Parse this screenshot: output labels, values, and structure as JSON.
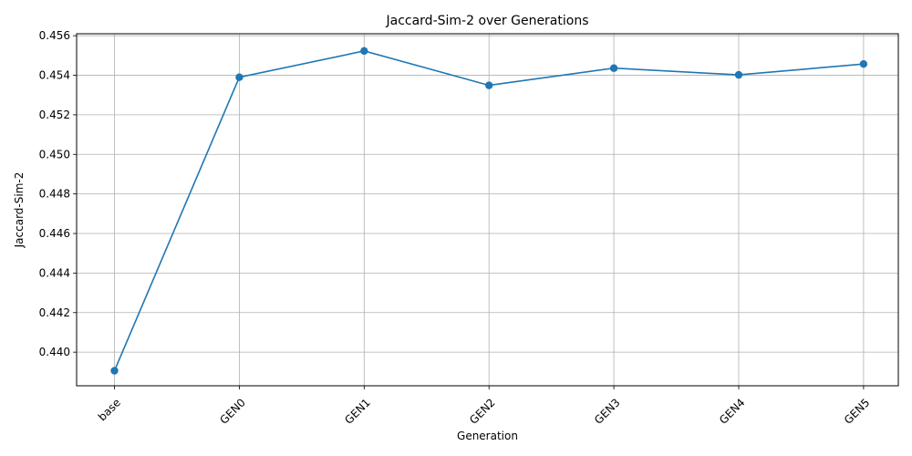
{
  "chart_data": {
    "type": "line",
    "title": "Jaccard-Sim-2 over Generations",
    "xlabel": "Generation",
    "ylabel": "Jaccard-Sim-2",
    "categories": [
      "base",
      "GEN0",
      "GEN1",
      "GEN2",
      "GEN3",
      "GEN4",
      "GEN5"
    ],
    "series": [
      {
        "values": [
          0.43906,
          0.4539,
          0.45523,
          0.45349,
          0.45436,
          0.45402,
          0.45457
        ]
      }
    ],
    "ylim": [
      0.4383,
      0.4561
    ],
    "yticks": [
      "0.440",
      "0.442",
      "0.444",
      "0.446",
      "0.448",
      "0.450",
      "0.452",
      "0.454",
      "0.456"
    ],
    "grid": true,
    "marker": "circle",
    "line_color": "#1f77b4",
    "grid_color": "#b0b0b0"
  }
}
